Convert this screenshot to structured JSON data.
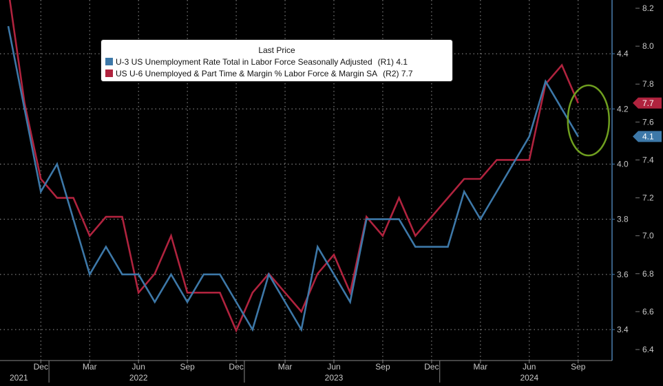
{
  "chart_data": {
    "type": "line",
    "legend": {
      "title": "Last Price",
      "placement": "top-center",
      "entries": [
        {
          "label": "U-3 US Unemployment Rate Total in Labor Force Seasonally Adjusted",
          "axis": "(R1)",
          "last": "4.1"
        },
        {
          "label": "US U-6 Unemployed & Part Time & Margin % Labor Force & Margin SA",
          "axis": "(R2)",
          "last": "7.7"
        }
      ]
    },
    "x": [
      "2021-10",
      "2021-11",
      "2021-12",
      "2022-01",
      "2022-02",
      "2022-03",
      "2022-04",
      "2022-05",
      "2022-06",
      "2022-07",
      "2022-08",
      "2022-09",
      "2022-10",
      "2022-11",
      "2022-12",
      "2023-01",
      "2023-02",
      "2023-03",
      "2023-04",
      "2023-05",
      "2023-06",
      "2023-07",
      "2023-08",
      "2023-09",
      "2023-10",
      "2023-11",
      "2023-12",
      "2024-01",
      "2024-02",
      "2024-03",
      "2024-04",
      "2024-05",
      "2024-06",
      "2024-07",
      "2024-08",
      "2024-09"
    ],
    "series": [
      {
        "name": "U-3 US Unemployment Rate Total in Labor Force Seasonally Adjusted",
        "axis": "R1",
        "color": "#3d78a8",
        "values": [
          4.5,
          4.2,
          3.9,
          4.0,
          3.8,
          3.6,
          3.7,
          3.6,
          3.6,
          3.5,
          3.6,
          3.5,
          3.6,
          3.6,
          3.5,
          3.4,
          3.6,
          3.5,
          3.4,
          3.7,
          3.6,
          3.5,
          3.8,
          3.8,
          3.8,
          3.7,
          3.7,
          3.7,
          3.9,
          3.8,
          3.9,
          4.0,
          4.1,
          4.3,
          4.2,
          4.1
        ]
      },
      {
        "name": "US U-6 Unemployed & Part Time & Margin % Labor Force & Margin SA",
        "axis": "R2",
        "color": "#b0233e",
        "values": [
          8.3,
          7.7,
          7.3,
          7.2,
          7.2,
          7.0,
          7.1,
          7.1,
          6.7,
          6.8,
          7.0,
          6.7,
          6.7,
          6.7,
          6.5,
          6.7,
          6.8,
          6.7,
          6.6,
          6.8,
          6.9,
          6.7,
          7.1,
          7.0,
          7.2,
          7.0,
          7.1,
          7.2,
          7.3,
          7.3,
          7.4,
          7.4,
          7.4,
          7.8,
          7.9,
          7.7
        ]
      }
    ],
    "axes": {
      "r1": {
        "ylim": [
          3.34,
          4.6
        ],
        "ticks": [
          "4.4",
          "4.2",
          "4.0",
          "3.8",
          "3.6",
          "3.4"
        ]
      },
      "r2": {
        "ylim": [
          6.3,
          8.3
        ],
        "ticks": [
          "8.2",
          "8.0",
          "7.8",
          "7.6",
          "7.4",
          "7.2",
          "7.0",
          "6.8",
          "6.6",
          "6.4"
        ]
      }
    },
    "x_ticks": [
      {
        "x": "2021-12",
        "label": "Dec"
      },
      {
        "x": "2022-03",
        "label": "Mar"
      },
      {
        "x": "2022-06",
        "label": "Jun"
      },
      {
        "x": "2022-09",
        "label": "Sep"
      },
      {
        "x": "2022-12",
        "label": "Dec"
      },
      {
        "x": "2023-03",
        "label": "Mar"
      },
      {
        "x": "2023-06",
        "label": "Jun"
      },
      {
        "x": "2023-09",
        "label": "Sep"
      },
      {
        "x": "2023-12",
        "label": "Dec"
      },
      {
        "x": "2024-03",
        "label": "Mar"
      },
      {
        "x": "2024-06",
        "label": "Jun"
      },
      {
        "x": "2024-09",
        "label": "Sep"
      }
    ],
    "x_years": [
      {
        "x": "2021-11",
        "label": "2021"
      },
      {
        "x": "2022-06",
        "label": "2022"
      },
      {
        "x": "2023-06",
        "label": "2023"
      },
      {
        "x": "2024-06",
        "label": "2024"
      }
    ],
    "grid": true,
    "last_price_tags": [
      {
        "value": "7.7",
        "axis": "R2",
        "color": "#b0233e"
      },
      {
        "value": "4.1",
        "axis": "R1",
        "color": "#3d78a8"
      }
    ],
    "annotation": {
      "shape": "ellipse",
      "color": "#6f9f1f",
      "around": "2024-09"
    }
  }
}
